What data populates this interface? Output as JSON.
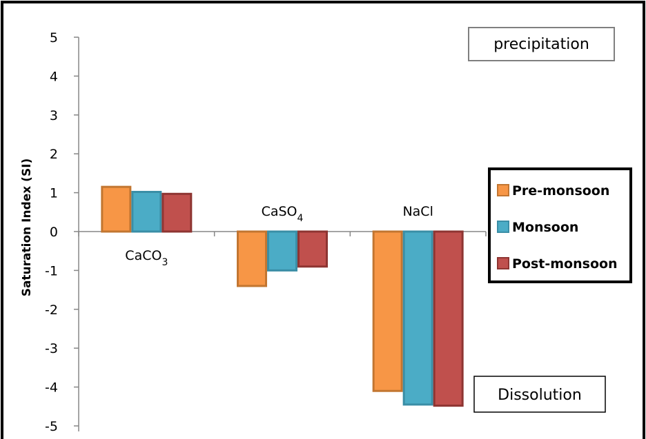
{
  "chart_data": {
    "type": "bar",
    "title": "",
    "xlabel": "",
    "ylabel": "Saturation Index (SI)",
    "ylim": [
      -5,
      5
    ],
    "yticks": [
      5,
      4,
      3,
      2,
      1,
      0,
      -1,
      -2,
      -3,
      -4,
      -5
    ],
    "grid": false,
    "legend_position": "right",
    "categories": [
      {
        "base": "CaCO",
        "sub": "3"
      },
      {
        "base": "CaSO",
        "sub": "4"
      },
      {
        "base": "NaCl",
        "sub": ""
      }
    ],
    "category_label_side": [
      "below",
      "above",
      "above"
    ],
    "series": [
      {
        "name": "Pre-monsoon",
        "color": "#F79646",
        "edge": "#C27631",
        "values": [
          1.15,
          -1.4,
          -4.1
        ]
      },
      {
        "name": "Monsoon",
        "color": "#4BACC6",
        "edge": "#3A8EA6",
        "values": [
          1.02,
          -1.0,
          -4.45
        ]
      },
      {
        "name": "Post-monsoon",
        "color": "#C0504D",
        "edge": "#8E3532",
        "values": [
          0.97,
          -0.9,
          -4.48
        ]
      }
    ],
    "annotations": [
      {
        "text": "precipitation",
        "region": "top-right"
      },
      {
        "text": "Dissolution",
        "region": "bottom-right"
      }
    ]
  }
}
